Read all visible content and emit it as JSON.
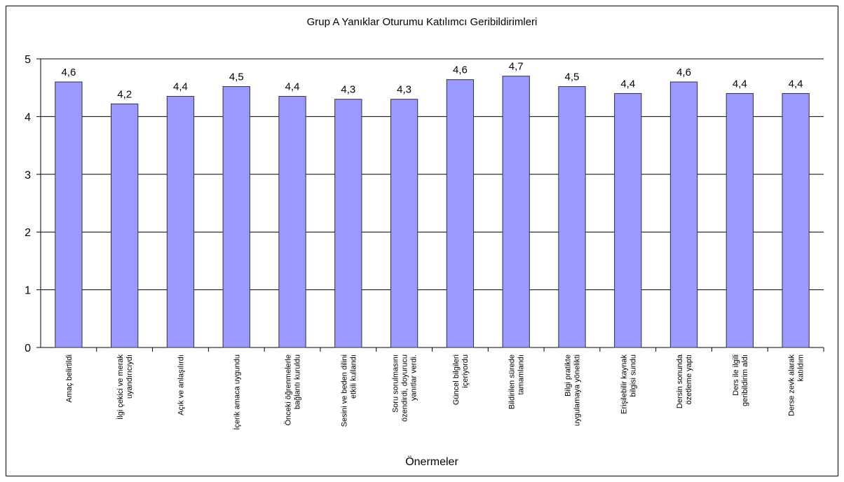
{
  "chart_data": {
    "type": "bar",
    "title": "Grup A Yanıklar Oturumu Katılımcı Geribildirimleri",
    "x_label": "Önermeler",
    "categories": [
      [
        "Amaç belirtildi"
      ],
      [
        "İlgi çekici ve merak",
        "uyandırıcıydı"
      ],
      [
        "Açık ve anlaşılırdı"
      ],
      [
        "İçerik amaca uygundu"
      ],
      [
        "Önceki öğrenmelerle",
        "bağlantı kuruldu"
      ],
      [
        "Sesini ve beden dilini",
        "etkili kullandı"
      ],
      [
        "Soru sorulmasını",
        "özendirdi, doyurucu",
        "yanıtlar verdi."
      ],
      [
        "Güncel bilgileri",
        "içeriyordu"
      ],
      [
        "Bildirilen sürede",
        "tamamlandı"
      ],
      [
        "Bilgi pratikte",
        "uygulamaya yönelikti"
      ],
      [
        "Erişilebilir kaynak",
        "bilgisi sundu"
      ],
      [
        "Dersin sonunda",
        "özetleme yaptı"
      ],
      [
        "Ders ile ilgili",
        "geribildirim aldı"
      ],
      [
        "Derse zevk alarak",
        "katıldım"
      ]
    ],
    "values": [
      4.6,
      4.22,
      4.35,
      4.52,
      4.35,
      4.3,
      4.3,
      4.64,
      4.7,
      4.52,
      4.4,
      4.6,
      4.4,
      4.4
    ],
    "value_labels": [
      "4,6",
      "4,2",
      "4,4",
      "4,5",
      "4,4",
      "4,3",
      "4,3",
      "4,6",
      "4,7",
      "4,5",
      "4,4",
      "4,6",
      "4,4",
      "4,4"
    ],
    "color": "#9999ff",
    "ylim": [
      0,
      5
    ],
    "yticks": [
      0,
      1,
      2,
      3,
      4,
      5
    ],
    "grid": true
  }
}
